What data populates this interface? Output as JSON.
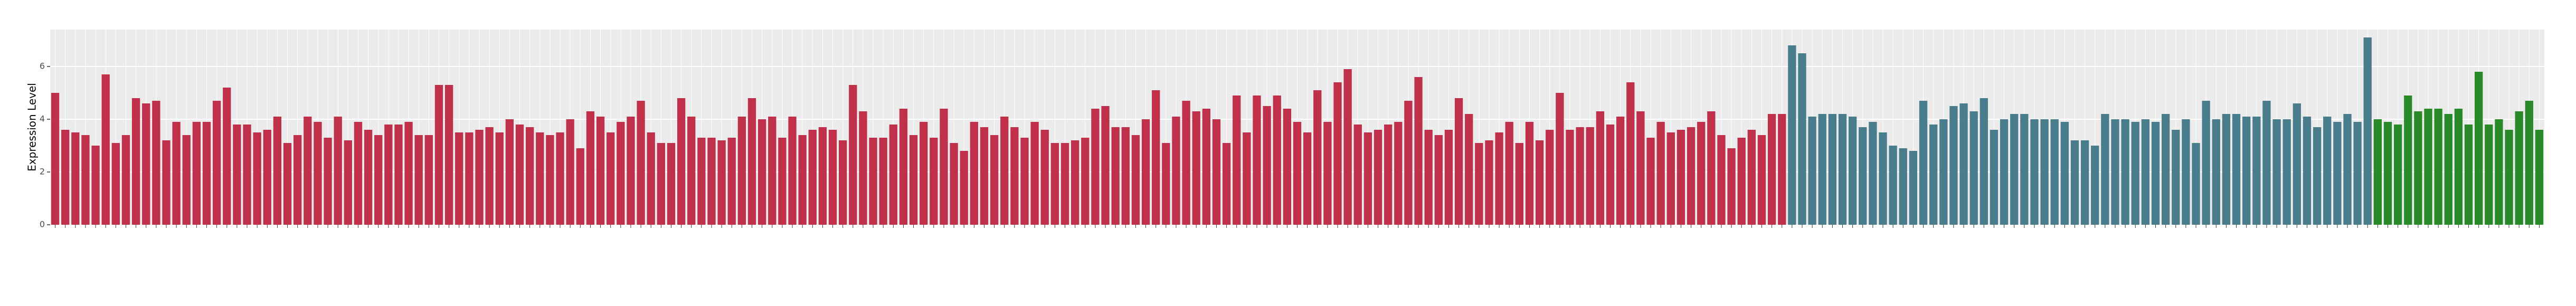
{
  "chart_data": {
    "type": "bar",
    "y_label": "Expression Level",
    "categories": [
      null,
      null,
      null,
      null,
      null,
      null,
      null,
      null,
      null,
      null,
      null,
      null,
      null,
      null,
      null,
      null,
      null,
      null,
      null,
      null,
      null,
      null,
      null,
      null,
      null,
      null,
      null,
      null,
      null,
      null,
      null,
      null,
      null,
      null,
      null,
      null,
      null,
      null,
      null,
      null,
      null,
      null,
      null,
      null,
      null,
      null,
      null,
      null,
      null,
      null,
      null,
      null,
      null,
      null,
      null,
      null,
      null,
      null,
      null,
      null,
      null,
      null,
      null,
      null,
      null,
      null,
      null,
      null,
      null,
      null,
      null,
      null,
      null,
      null,
      null,
      null,
      null,
      null,
      null,
      null,
      null,
      null,
      null,
      null,
      null,
      null,
      null,
      null,
      null,
      null,
      null,
      null,
      null,
      null,
      null,
      null,
      null,
      null,
      null,
      null,
      null,
      null,
      null,
      null,
      null,
      null,
      null,
      null,
      null,
      null,
      null,
      null,
      null,
      null,
      null,
      null,
      null,
      null,
      null,
      null,
      null,
      null,
      null,
      null,
      null,
      null,
      null,
      null,
      null,
      null,
      null,
      null,
      null,
      null,
      null,
      null,
      null,
      null,
      null,
      null,
      null,
      null,
      null,
      null,
      null,
      null,
      null,
      null,
      null,
      null,
      null,
      null,
      null,
      null,
      null,
      null,
      null,
      null,
      null,
      null,
      null,
      null,
      null,
      null,
      null,
      null,
      null,
      null,
      null,
      null,
      null,
      null,
      null,
      null,
      null,
      null,
      null,
      null,
      null,
      null,
      null,
      null,
      null,
      null,
      null,
      null,
      null,
      null,
      null,
      null,
      null,
      null,
      null,
      null,
      null,
      null,
      null,
      null,
      null,
      null,
      null,
      null,
      null,
      null,
      null,
      null,
      null,
      null,
      null,
      null,
      null,
      null,
      null,
      null,
      null,
      null,
      null,
      null,
      null,
      null,
      null,
      null,
      null,
      null,
      null,
      null,
      null,
      null,
      null,
      null,
      null,
      null,
      null,
      null,
      null,
      null,
      null,
      null,
      null,
      null,
      null,
      null,
      null,
      null,
      null,
      null,
      null
    ],
    "values": [
      5.0,
      3.6,
      3.5,
      3.4,
      3.0,
      5.7,
      3.1,
      3.4,
      4.8,
      4.6,
      4.7,
      3.2,
      3.9,
      3.4,
      3.9,
      3.9,
      4.7,
      5.2,
      3.8,
      3.8,
      3.5,
      3.6,
      4.1,
      3.1,
      3.4,
      4.1,
      3.9,
      3.3,
      4.1,
      3.2,
      3.9,
      3.6,
      3.4,
      3.8,
      3.8,
      3.9,
      3.4,
      3.4,
      5.3,
      5.3,
      3.5,
      3.5,
      3.6,
      3.7,
      3.5,
      4.0,
      3.8,
      3.7,
      3.5,
      3.4,
      3.5,
      4.0,
      2.9,
      4.3,
      4.1,
      3.5,
      3.9,
      4.1,
      4.7,
      3.5,
      3.1,
      3.1,
      4.8,
      4.1,
      3.3,
      3.3,
      3.2,
      3.3,
      4.1,
      4.8,
      4.0,
      4.1,
      3.3,
      4.1,
      3.4,
      3.6,
      3.7,
      3.6,
      3.2,
      5.3,
      4.3,
      3.3,
      3.3,
      3.8,
      4.4,
      3.4,
      3.9,
      3.3,
      4.4,
      3.1,
      2.8,
      3.9,
      3.7,
      3.4,
      4.1,
      3.7,
      3.3,
      3.9,
      3.6,
      3.1,
      3.1,
      3.2,
      3.3,
      4.4,
      4.5,
      3.7,
      3.7,
      3.4,
      4.0,
      5.1,
      3.1,
      4.1,
      4.7,
      4.3,
      4.4,
      4.0,
      3.1,
      4.9,
      3.5,
      4.9,
      4.5,
      4.9,
      4.4,
      3.9,
      3.5,
      5.1,
      3.9,
      5.4,
      5.9,
      3.8,
      3.5,
      3.6,
      3.8,
      3.9,
      4.7,
      5.6,
      3.6,
      3.4,
      3.6,
      4.8,
      4.2,
      3.1,
      3.2,
      3.5,
      3.9,
      3.1,
      3.9,
      3.2,
      3.6,
      5.0,
      3.6,
      3.7,
      3.7,
      4.3,
      3.8,
      4.1,
      5.4,
      4.3,
      3.3,
      3.9,
      3.5,
      3.6,
      3.7,
      3.9,
      4.3,
      3.4,
      2.9,
      3.3,
      3.6,
      3.4,
      4.2,
      4.2,
      6.8,
      6.5,
      4.1,
      4.2,
      4.2,
      4.2,
      4.1,
      3.7,
      3.9,
      3.5,
      3.0,
      2.9,
      2.8,
      4.7,
      3.8,
      4.0,
      4.5,
      4.6,
      4.3,
      4.8,
      3.6,
      4.0,
      4.2,
      4.2,
      4.0,
      4.0,
      4.0,
      3.9,
      3.2,
      3.2,
      3.0,
      4.2,
      4.0,
      4.0,
      3.9,
      4.0,
      3.9,
      4.2,
      3.6,
      4.0,
      3.1,
      4.7,
      4.0,
      4.2,
      4.2,
      4.1,
      4.1,
      4.7,
      4.0,
      4.0,
      4.6,
      4.1,
      3.7,
      4.1,
      3.9,
      4.2,
      3.9,
      7.1,
      4.0,
      3.9,
      3.8,
      4.9,
      4.3,
      4.4,
      4.4,
      4.2,
      4.4,
      3.8,
      5.8,
      3.8,
      4.0,
      3.6,
      4.3,
      4.7,
      3.6
    ],
    "colors": [
      "#c0304a",
      "#c0304a",
      "#c0304a",
      "#c0304a",
      "#c0304a",
      "#c0304a",
      "#c0304a",
      "#c0304a",
      "#c0304a",
      "#c0304a",
      "#c0304a",
      "#c0304a",
      "#c0304a",
      "#c0304a",
      "#c0304a",
      "#c0304a",
      "#c0304a",
      "#c0304a",
      "#c0304a",
      "#c0304a",
      "#c0304a",
      "#c0304a",
      "#c0304a",
      "#c0304a",
      "#c0304a",
      "#c0304a",
      "#c0304a",
      "#c0304a",
      "#c0304a",
      "#c0304a",
      "#c0304a",
      "#c0304a",
      "#c0304a",
      "#c0304a",
      "#c0304a",
      "#c0304a",
      "#c0304a",
      "#c0304a",
      "#c0304a",
      "#c0304a",
      "#c0304a",
      "#c0304a",
      "#c0304a",
      "#c0304a",
      "#c0304a",
      "#c0304a",
      "#c0304a",
      "#c0304a",
      "#c0304a",
      "#c0304a",
      "#c0304a",
      "#c0304a",
      "#c0304a",
      "#c0304a",
      "#c0304a",
      "#c0304a",
      "#c0304a",
      "#c0304a",
      "#c0304a",
      "#c0304a",
      "#c0304a",
      "#c0304a",
      "#c0304a",
      "#c0304a",
      "#c0304a",
      "#c0304a",
      "#c0304a",
      "#c0304a",
      "#c0304a",
      "#c0304a",
      "#c0304a",
      "#c0304a",
      "#c0304a",
      "#c0304a",
      "#c0304a",
      "#c0304a",
      "#c0304a",
      "#c0304a",
      "#c0304a",
      "#c0304a",
      "#c0304a",
      "#c0304a",
      "#c0304a",
      "#c0304a",
      "#c0304a",
      "#c0304a",
      "#c0304a",
      "#c0304a",
      "#c0304a",
      "#c0304a",
      "#c0304a",
      "#c0304a",
      "#c0304a",
      "#c0304a",
      "#c0304a",
      "#c0304a",
      "#c0304a",
      "#c0304a",
      "#c0304a",
      "#c0304a",
      "#c0304a",
      "#c0304a",
      "#c0304a",
      "#c0304a",
      "#c0304a",
      "#c0304a",
      "#c0304a",
      "#c0304a",
      "#c0304a",
      "#c0304a",
      "#c0304a",
      "#c0304a",
      "#c0304a",
      "#c0304a",
      "#c0304a",
      "#c0304a",
      "#c0304a",
      "#c0304a",
      "#c0304a",
      "#c0304a",
      "#c0304a",
      "#c0304a",
      "#c0304a",
      "#c0304a",
      "#c0304a",
      "#c0304a",
      "#c0304a",
      "#c0304a",
      "#c0304a",
      "#c0304a",
      "#c0304a",
      "#c0304a",
      "#c0304a",
      "#c0304a",
      "#c0304a",
      "#c0304a",
      "#c0304a",
      "#c0304a",
      "#c0304a",
      "#c0304a",
      "#c0304a",
      "#c0304a",
      "#c0304a",
      "#c0304a",
      "#c0304a",
      "#c0304a",
      "#c0304a",
      "#c0304a",
      "#c0304a",
      "#c0304a",
      "#c0304a",
      "#c0304a",
      "#c0304a",
      "#c0304a",
      "#c0304a",
      "#c0304a",
      "#c0304a",
      "#c0304a",
      "#c0304a",
      "#c0304a",
      "#c0304a",
      "#c0304a",
      "#c0304a",
      "#c0304a",
      "#c0304a",
      "#c0304a",
      "#c0304a",
      "#c0304a",
      "#c0304a",
      "#c0304a",
      "#c0304a",
      "#c0304a",
      "#4a7d8c",
      "#4a7d8c",
      "#4a7d8c",
      "#4a7d8c",
      "#4a7d8c",
      "#4a7d8c",
      "#4a7d8c",
      "#4a7d8c",
      "#4a7d8c",
      "#4a7d8c",
      "#4a7d8c",
      "#4a7d8c",
      "#4a7d8c",
      "#4a7d8c",
      "#4a7d8c",
      "#4a7d8c",
      "#4a7d8c",
      "#4a7d8c",
      "#4a7d8c",
      "#4a7d8c",
      "#4a7d8c",
      "#4a7d8c",
      "#4a7d8c",
      "#4a7d8c",
      "#4a7d8c",
      "#4a7d8c",
      "#4a7d8c",
      "#4a7d8c",
      "#4a7d8c",
      "#4a7d8c",
      "#4a7d8c",
      "#4a7d8c",
      "#4a7d8c",
      "#4a7d8c",
      "#4a7d8c",
      "#4a7d8c",
      "#4a7d8c",
      "#4a7d8c",
      "#4a7d8c",
      "#4a7d8c",
      "#4a7d8c",
      "#4a7d8c",
      "#4a7d8c",
      "#4a7d8c",
      "#4a7d8c",
      "#4a7d8c",
      "#4a7d8c",
      "#4a7d8c",
      "#4a7d8c",
      "#4a7d8c",
      "#4a7d8c",
      "#4a7d8c",
      "#4a7d8c",
      "#4a7d8c",
      "#4a7d8c",
      "#4a7d8c",
      "#4a7d8c",
      "#4a7d8c",
      "#2a8a2a",
      "#2a8a2a",
      "#2a8a2a",
      "#2a8a2a",
      "#2a8a2a",
      "#2a8a2a",
      "#2a8a2a",
      "#2a8a2a",
      "#2a8a2a",
      "#2a8a2a",
      "#2a8a2a",
      "#2a8a2a",
      "#2a8a2a",
      "#2a8a2a",
      "#2a8a2a",
      "#2a8a2a",
      "#2a8a2a"
    ],
    "ylim": [
      0,
      7.4
    ],
    "yticks": [
      0,
      2,
      4,
      6
    ],
    "grid": true
  }
}
